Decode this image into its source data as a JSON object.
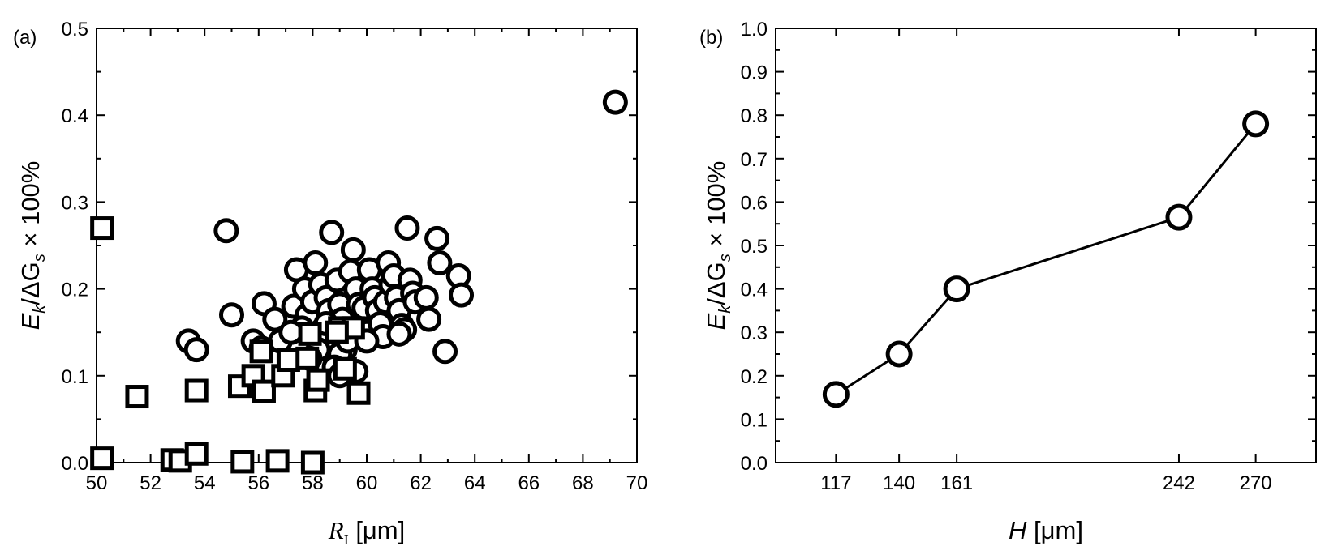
{
  "chart_data": [
    {
      "panel_label": "(a)",
      "type": "scatter",
      "xlabel_main": "R",
      "xlabel_sub": "I",
      "xlabel_unit": " [μm]",
      "ylabel_parts": [
        "E",
        "k",
        "/ΔG",
        "s",
        " × 100%"
      ],
      "xlim": [
        50,
        70
      ],
      "ylim": [
        0,
        0.5
      ],
      "xticks": [
        50,
        52,
        54,
        56,
        58,
        60,
        62,
        64,
        66,
        68,
        70
      ],
      "yticks": [
        0.0,
        0.1,
        0.2,
        0.3,
        0.4,
        0.5
      ],
      "ytick_labels": [
        "0.0",
        "0.1",
        "0.2",
        "0.3",
        "0.4",
        "0.5"
      ],
      "grid": false,
      "series": [
        {
          "marker": "circle",
          "points": [
            [
              69.2,
              0.415
            ],
            [
              54.8,
              0.267
            ],
            [
              55.0,
              0.17
            ],
            [
              53.4,
              0.14
            ],
            [
              53.7,
              0.13
            ],
            [
              56.2,
              0.183
            ],
            [
              55.8,
              0.14
            ],
            [
              56.1,
              0.132
            ],
            [
              56.6,
              0.165
            ],
            [
              56.8,
              0.14
            ],
            [
              57.3,
              0.18
            ],
            [
              57.4,
              0.222
            ],
            [
              57.7,
              0.2
            ],
            [
              57.8,
              0.17
            ],
            [
              57.6,
              0.155
            ],
            [
              58.0,
              0.185
            ],
            [
              58.1,
              0.23
            ],
            [
              58.3,
              0.205
            ],
            [
              58.5,
              0.19
            ],
            [
              58.6,
              0.175
            ],
            [
              58.7,
              0.265
            ],
            [
              58.9,
              0.21
            ],
            [
              59.0,
              0.182
            ],
            [
              59.1,
              0.165
            ],
            [
              59.2,
              0.13
            ],
            [
              59.4,
              0.22
            ],
            [
              59.5,
              0.245
            ],
            [
              59.6,
              0.2
            ],
            [
              59.7,
              0.182
            ],
            [
              59.8,
              0.16
            ],
            [
              59.9,
              0.178
            ],
            [
              60.0,
              0.15
            ],
            [
              60.1,
              0.222
            ],
            [
              60.2,
              0.2
            ],
            [
              60.3,
              0.19
            ],
            [
              60.4,
              0.175
            ],
            [
              60.5,
              0.16
            ],
            [
              60.6,
              0.145
            ],
            [
              60.7,
              0.185
            ],
            [
              60.8,
              0.23
            ],
            [
              60.9,
              0.205
            ],
            [
              61.0,
              0.215
            ],
            [
              61.1,
              0.19
            ],
            [
              61.2,
              0.175
            ],
            [
              61.3,
              0.158
            ],
            [
              61.4,
              0.153
            ],
            [
              61.5,
              0.27
            ],
            [
              61.6,
              0.21
            ],
            [
              61.7,
              0.195
            ],
            [
              61.8,
              0.185
            ],
            [
              62.2,
              0.19
            ],
            [
              62.3,
              0.165
            ],
            [
              62.6,
              0.258
            ],
            [
              62.7,
              0.23
            ],
            [
              62.9,
              0.128
            ],
            [
              63.4,
              0.215
            ],
            [
              63.5,
              0.193
            ],
            [
              59.0,
              0.125
            ],
            [
              59.3,
              0.14
            ],
            [
              58.2,
              0.13
            ],
            [
              57.9,
              0.12
            ],
            [
              60.0,
              0.14
            ],
            [
              61.2,
              0.148
            ],
            [
              58.8,
              0.11
            ],
            [
              59.6,
              0.105
            ],
            [
              58.5,
              0.16
            ],
            [
              57.2,
              0.15
            ],
            [
              59.0,
              0.1
            ]
          ]
        },
        {
          "marker": "square",
          "points": [
            [
              50.2,
              0.27
            ],
            [
              51.5,
              0.076
            ],
            [
              53.7,
              0.083
            ],
            [
              55.3,
              0.088
            ],
            [
              55.8,
              0.1
            ],
            [
              56.1,
              0.128
            ],
            [
              56.2,
              0.082
            ],
            [
              56.9,
              0.1
            ],
            [
              57.1,
              0.118
            ],
            [
              57.8,
              0.12
            ],
            [
              57.9,
              0.148
            ],
            [
              58.1,
              0.083
            ],
            [
              58.2,
              0.095
            ],
            [
              59.0,
              0.155
            ],
            [
              59.2,
              0.108
            ],
            [
              59.5,
              0.155
            ],
            [
              59.7,
              0.08
            ],
            [
              50.2,
              0.005
            ],
            [
              52.8,
              0.003
            ],
            [
              53.1,
              0.002
            ],
            [
              53.7,
              0.01
            ],
            [
              55.4,
              0.001
            ],
            [
              56.7,
              0.002
            ],
            [
              58.0,
              0.0
            ],
            [
              58.9,
              0.15
            ]
          ]
        }
      ]
    },
    {
      "panel_label": "(b)",
      "type": "line",
      "xlabel_main": "H",
      "xlabel_unit": " [μm]",
      "ylabel_parts": [
        "E",
        "k",
        "/ΔG",
        "s",
        " × 100%"
      ],
      "xlim": [
        95,
        292
      ],
      "ylim": [
        0,
        1.0
      ],
      "xticks": [
        117,
        140,
        161,
        242,
        270
      ],
      "yticks": [
        0.0,
        0.1,
        0.2,
        0.3,
        0.4,
        0.5,
        0.6,
        0.7,
        0.8,
        0.9,
        1.0
      ],
      "ytick_labels": [
        "0.0",
        "0.1",
        "0.2",
        "0.3",
        "0.4",
        "0.5",
        "0.6",
        "0.7",
        "0.8",
        "0.9",
        "1.0"
      ],
      "grid": false,
      "series": [
        {
          "marker": "circle",
          "x": [
            117,
            140,
            161,
            242,
            270
          ],
          "y": [
            0.157,
            0.25,
            0.4,
            0.565,
            0.78
          ]
        }
      ]
    }
  ]
}
